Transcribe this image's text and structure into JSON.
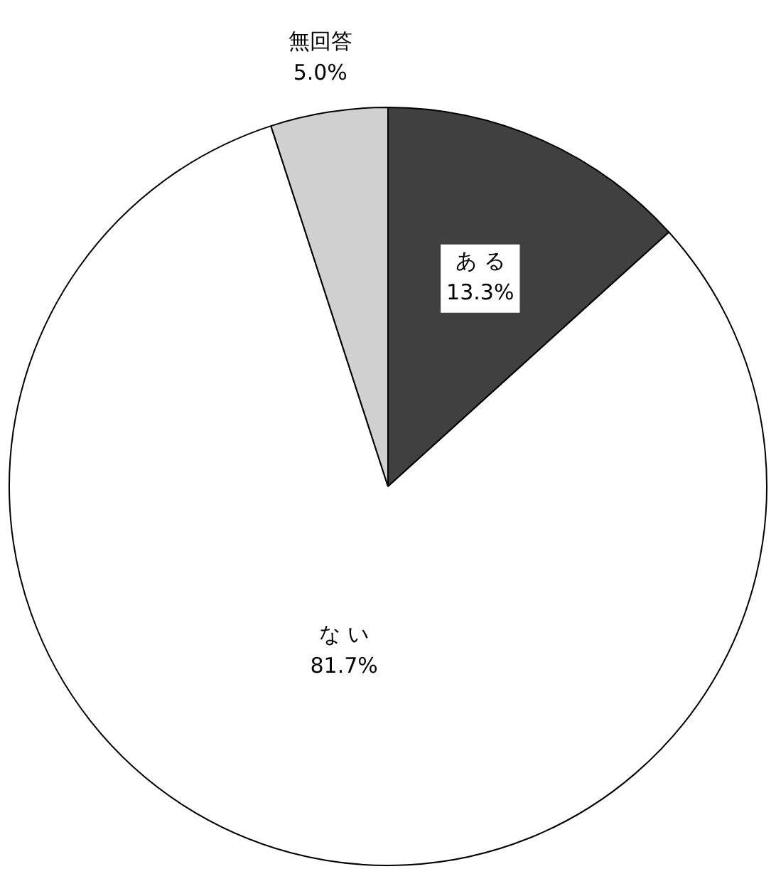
{
  "chart_data": {
    "type": "pie",
    "categories": [
      "あ る",
      "な い",
      "無回答"
    ],
    "values": [
      13.3,
      81.7,
      5.0
    ],
    "value_labels": [
      "13.3%",
      "81.7%",
      "5.0%"
    ],
    "colors": [
      "#404040",
      "#ffffff",
      "#d0d0d0"
    ]
  }
}
